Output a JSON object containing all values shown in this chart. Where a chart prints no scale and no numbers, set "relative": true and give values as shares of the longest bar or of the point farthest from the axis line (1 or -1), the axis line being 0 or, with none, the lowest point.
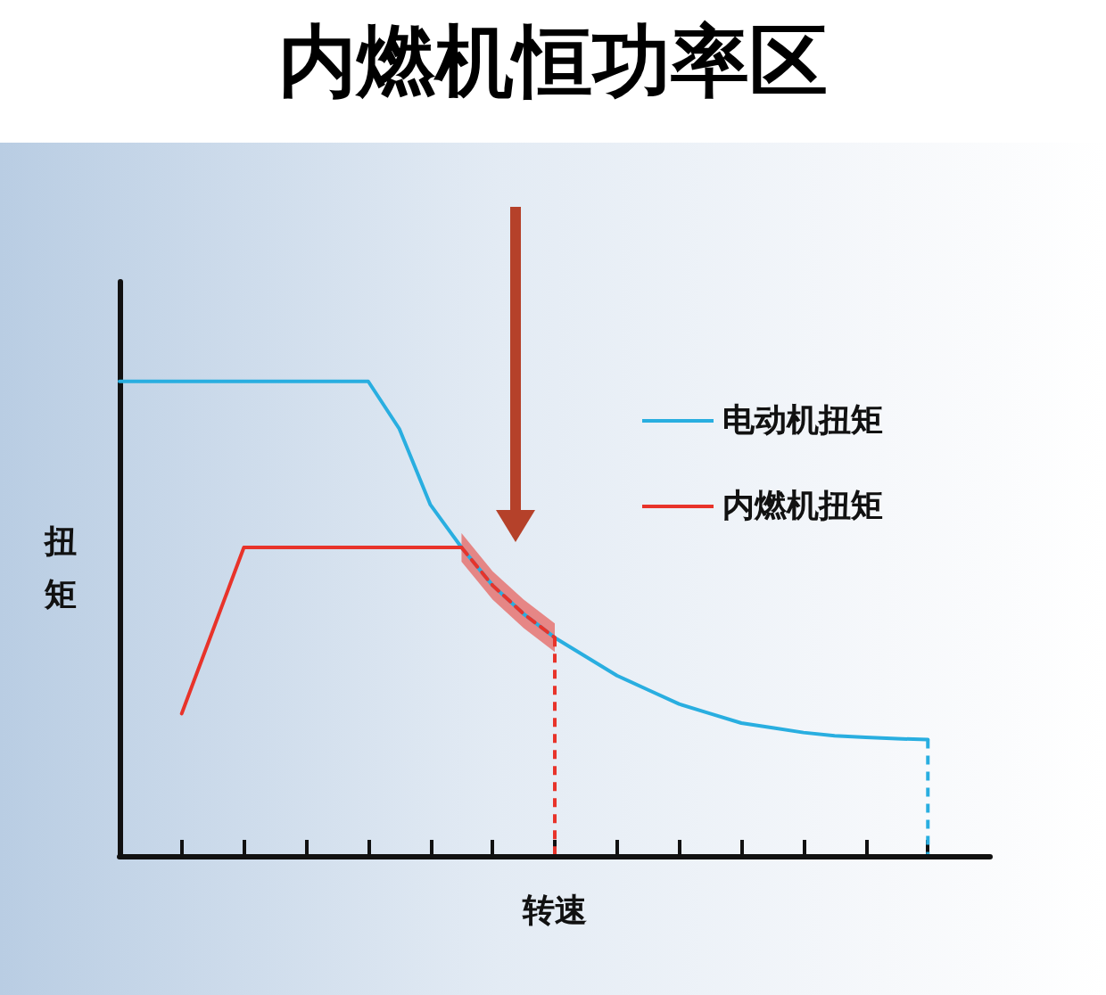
{
  "chart_data": {
    "type": "line",
    "title": "内燃机恒功率区",
    "xlabel": "转速",
    "ylabel": "扭矩",
    "relative": true,
    "categories": [
      null,
      null,
      null,
      null,
      null,
      null,
      null,
      null,
      null,
      null,
      null,
      null,
      null,
      null,
      null,
      null,
      null,
      null,
      null,
      null,
      null,
      null,
      null,
      null,
      null,
      null,
      null,
      null,
      null
    ],
    "grid": false,
    "legend": "top right",
    "marker": "none",
    "line_style": "solid",
    "series": [
      {
        "name": "电动机扭矩",
        "color": "#29aee0",
        "values": [
          1,
          1,
          1,
          1,
          1,
          1,
          1,
          1,
          1,
          0.9,
          0.74,
          0.65,
          0.57,
          0.51,
          0.46,
          0.42,
          0.38,
          0.35,
          0.32,
          0.3,
          0.28,
          0.27,
          0.26,
          0.253,
          0.25,
          0.247,
          0.245,
          null,
          null
        ]
      },
      {
        "name": "内燃机扭矩",
        "color": "#e8332a",
        "values": [
          null,
          null,
          0.3,
          0.475,
          0.65,
          0.65,
          0.65,
          0.65,
          0.65,
          0.65,
          0.65,
          0.65,
          null,
          null,
          null,
          null,
          null,
          null,
          null,
          null,
          null,
          null,
          null,
          null,
          null,
          null,
          null,
          null,
          null
        ]
      },
      {
        "color": "#e8332a",
        "line_style": "dashed",
        "values": [
          null,
          null,
          null,
          null,
          null,
          null,
          null,
          null,
          null,
          null,
          null,
          0.65,
          0.57,
          0.51,
          0.46,
          null,
          null,
          null,
          null,
          null,
          null,
          null,
          null,
          null,
          null,
          null,
          null,
          null,
          null
        ],
        "lower": [
          null,
          null,
          null,
          null,
          null,
          null,
          null,
          null,
          null,
          null,
          null,
          0.62,
          0.54,
          0.48,
          0.43,
          null,
          null,
          null,
          null,
          null,
          null,
          null,
          null,
          null,
          null,
          null,
          null,
          null,
          null
        ],
        "upper": [
          null,
          null,
          null,
          null,
          null,
          null,
          null,
          null,
          null,
          null,
          null,
          0.68,
          0.6,
          0.54,
          0.49,
          null,
          null,
          null,
          null,
          null,
          null,
          null,
          null,
          null,
          null,
          null,
          null,
          null,
          null
        ]
      }
    ]
  }
}
